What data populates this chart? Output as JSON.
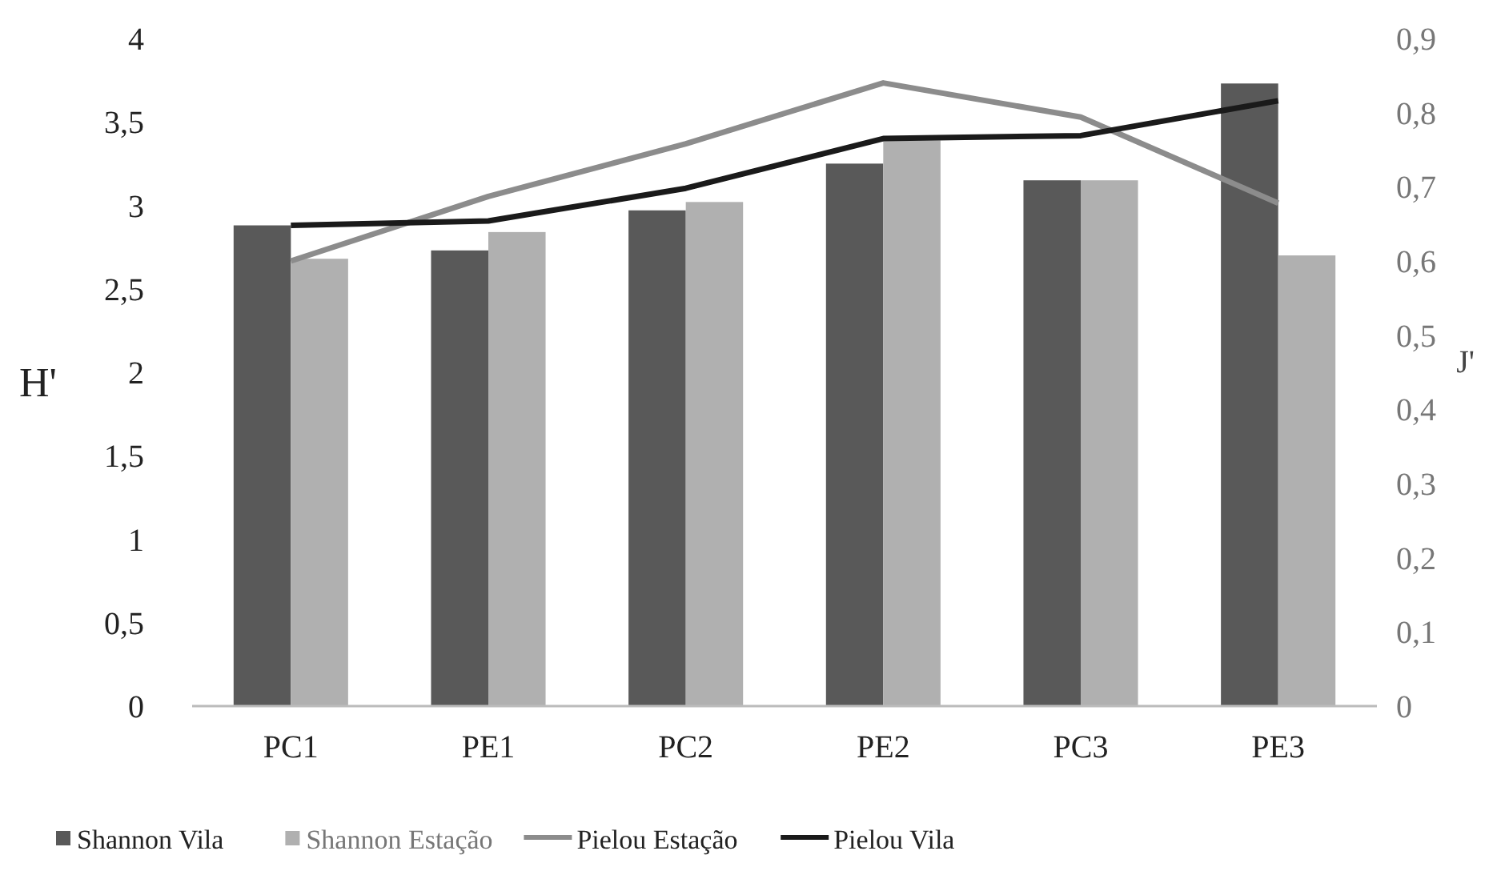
{
  "chart_data": {
    "type": "bar",
    "categories": [
      "PC1",
      "PE1",
      "PC2",
      "PE2",
      "PC3",
      "PE3"
    ],
    "ylabel": "H'",
    "y2label": "J'",
    "series": [
      {
        "name": "Shannon Vila",
        "color": "#595959",
        "values": [
          2.88,
          2.73,
          2.97,
          3.25,
          3.15,
          3.73
        ]
      },
      {
        "name": "Shannon Estação",
        "color": "#b0b0b0",
        "values": [
          2.68,
          2.84,
          3.02,
          3.39,
          3.15,
          2.7
        ]
      },
      {
        "name": "Pielou Estação",
        "type": "line",
        "axis": "y2",
        "color": "#8c8c8c",
        "values": [
          0.6,
          0.687,
          0.758,
          0.84,
          0.794,
          0.678
        ]
      },
      {
        "name": "Pielou Vila",
        "type": "line",
        "axis": "y2",
        "color": "#1a1a1a",
        "values": [
          0.648,
          0.654,
          0.698,
          0.765,
          0.769,
          0.816
        ]
      }
    ],
    "ylim": [
      0,
      4
    ],
    "yticks": [
      0,
      {
        "value": 0.5,
        "label": "0,5"
      },
      1,
      {
        "value": 1.5,
        "label": "1,5"
      },
      2,
      {
        "value": 2.5,
        "label": "2,5"
      },
      3,
      {
        "value": 3.5,
        "label": "3,5"
      },
      4
    ],
    "y2lim": [
      0,
      0.9
    ],
    "y2ticks": [
      0,
      {
        "value": 0.1,
        "label": "0,1"
      },
      {
        "value": 0.2,
        "label": "0,2"
      },
      {
        "value": 0.3,
        "label": "0,3"
      },
      {
        "value": 0.4,
        "label": "0,4"
      },
      {
        "value": 0.5,
        "label": "0,5"
      },
      {
        "value": 0.6,
        "label": "0,6"
      },
      {
        "value": 0.7,
        "label": "0,7"
      },
      {
        "value": 0.8,
        "label": "0,8"
      },
      {
        "value": 0.9,
        "label": "0,9"
      }
    ],
    "grid": false,
    "legend": "bottom",
    "line_style": "solid",
    "marker": "none"
  }
}
